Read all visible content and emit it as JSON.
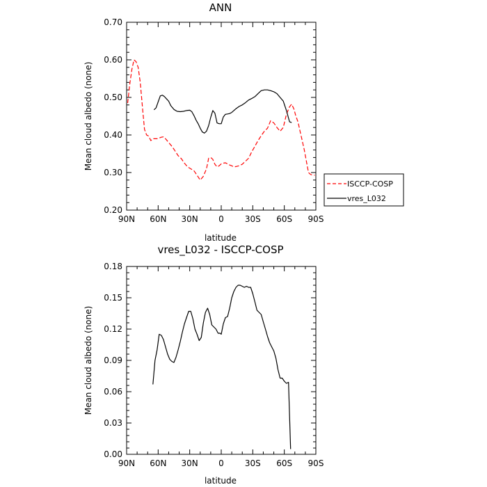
{
  "chart_data": [
    {
      "type": "line",
      "title": "ANN",
      "xlabel": "latitude",
      "ylabel": "Mean cloud albedo (none)",
      "x_tick_labels": [
        "90N",
        "60N",
        "30N",
        "0",
        "30S",
        "60S",
        "90S"
      ],
      "x_ticks": [
        90,
        60,
        30,
        0,
        -30,
        -60,
        -90
      ],
      "y_tick_labels": [
        "0.20",
        "0.30",
        "0.40",
        "0.50",
        "0.60",
        "0.70"
      ],
      "y_ticks": [
        0.2,
        0.3,
        0.4,
        0.5,
        0.6,
        0.7
      ],
      "xlim": [
        90,
        -90
      ],
      "ylim": [
        0.2,
        0.7
      ],
      "grid": false,
      "legend": "right",
      "series": [
        {
          "name": "ISCCP-COSP",
          "color": "#ff0000",
          "dash": "dashed",
          "x": [
            89,
            87,
            85,
            83,
            81,
            79,
            77,
            75,
            73,
            71,
            69,
            67,
            65,
            63,
            61,
            59,
            57,
            55,
            53,
            50,
            47,
            44,
            41,
            38,
            35,
            32,
            29,
            26,
            23,
            20,
            17,
            14,
            12,
            10,
            8,
            6,
            4,
            2,
            0,
            -2,
            -4,
            -6,
            -8,
            -10,
            -12,
            -14,
            -17,
            -20,
            -23,
            -26,
            -29,
            -32,
            -35,
            -38,
            -41,
            -44,
            -47,
            -50,
            -53,
            -56,
            -59,
            -62,
            -65,
            -67,
            -69,
            -71,
            -73,
            -75,
            -77,
            -79,
            -81,
            -83,
            -85,
            -87,
            -89
          ],
          "y": [
            0.485,
            0.535,
            0.575,
            0.6,
            0.595,
            0.58,
            0.54,
            0.475,
            0.415,
            0.4,
            0.397,
            0.385,
            0.39,
            0.39,
            0.39,
            0.392,
            0.394,
            0.395,
            0.39,
            0.38,
            0.37,
            0.358,
            0.345,
            0.337,
            0.325,
            0.315,
            0.31,
            0.305,
            0.293,
            0.28,
            0.29,
            0.31,
            0.338,
            0.34,
            0.335,
            0.322,
            0.315,
            0.318,
            0.323,
            0.325,
            0.326,
            0.323,
            0.32,
            0.318,
            0.315,
            0.316,
            0.318,
            0.322,
            0.33,
            0.338,
            0.355,
            0.37,
            0.385,
            0.398,
            0.41,
            0.418,
            0.438,
            0.432,
            0.42,
            0.41,
            0.42,
            0.455,
            0.475,
            0.482,
            0.47,
            0.45,
            0.435,
            0.41,
            0.385,
            0.36,
            0.33,
            0.3,
            0.295,
            0.293,
            0.293
          ]
        },
        {
          "name": "vres_L032",
          "color": "#000000",
          "dash": "solid",
          "x": [
            64,
            62,
            60,
            58,
            56,
            54,
            52,
            50,
            48,
            45,
            42,
            39,
            36,
            33,
            30,
            28,
            26,
            24,
            22,
            20,
            18,
            16,
            14,
            12,
            10,
            8,
            6,
            4,
            2,
            0,
            -2,
            -4,
            -6,
            -8,
            -10,
            -12,
            -14,
            -17,
            -20,
            -23,
            -26,
            -29,
            -32,
            -35,
            -38,
            -41,
            -44,
            -47,
            -50,
            -53,
            -56,
            -59,
            -62,
            -64,
            -65,
            -67
          ],
          "y": [
            0.467,
            0.472,
            0.488,
            0.504,
            0.506,
            0.502,
            0.496,
            0.49,
            0.478,
            0.468,
            0.463,
            0.462,
            0.463,
            0.465,
            0.466,
            0.462,
            0.452,
            0.44,
            0.43,
            0.418,
            0.408,
            0.405,
            0.41,
            0.425,
            0.447,
            0.465,
            0.458,
            0.432,
            0.43,
            0.43,
            0.448,
            0.455,
            0.456,
            0.457,
            0.46,
            0.465,
            0.47,
            0.476,
            0.48,
            0.486,
            0.493,
            0.497,
            0.502,
            0.51,
            0.518,
            0.52,
            0.52,
            0.518,
            0.515,
            0.51,
            0.5,
            0.49,
            0.465,
            0.445,
            0.435,
            0.433
          ]
        }
      ]
    },
    {
      "type": "line",
      "title": "vres_L032 - ISCCP-COSP",
      "xlabel": "latitude",
      "ylabel": "Mean cloud albedo (none)",
      "x_tick_labels": [
        "90N",
        "60N",
        "30N",
        "0",
        "30S",
        "60S",
        "90S"
      ],
      "x_ticks": [
        90,
        60,
        30,
        0,
        -30,
        -60,
        -90
      ],
      "y_tick_labels": [
        "0.00",
        "0.03",
        "0.06",
        "0.09",
        "0.12",
        "0.15",
        "0.18"
      ],
      "y_ticks": [
        0,
        0.03,
        0.06,
        0.09,
        0.12,
        0.15,
        0.18
      ],
      "xlim": [
        90,
        -90
      ],
      "ylim": [
        0,
        0.18
      ],
      "grid": false,
      "series": [
        {
          "color": "#000000",
          "dash": "solid",
          "x": [
            65,
            63,
            61,
            59,
            57,
            55,
            53,
            51,
            49,
            47,
            45,
            43,
            41,
            39,
            37,
            35,
            33,
            31,
            29,
            27,
            25,
            23,
            21,
            19,
            17,
            15,
            13,
            11,
            9,
            7,
            5,
            3,
            1,
            0,
            -2,
            -4,
            -6,
            -8,
            -10,
            -12,
            -14,
            -16,
            -18,
            -20,
            -22,
            -24,
            -26,
            -28,
            -30,
            -32,
            -34,
            -36,
            -38,
            -40,
            -42,
            -44,
            -46,
            -48,
            -50,
            -52,
            -54,
            -56,
            -58,
            -60,
            -62,
            -64,
            -66
          ],
          "y": [
            0.067,
            0.09,
            0.1,
            0.115,
            0.114,
            0.11,
            0.103,
            0.096,
            0.091,
            0.089,
            0.088,
            0.093,
            0.1,
            0.108,
            0.117,
            0.125,
            0.131,
            0.137,
            0.137,
            0.13,
            0.12,
            0.115,
            0.109,
            0.112,
            0.126,
            0.136,
            0.14,
            0.134,
            0.124,
            0.122,
            0.12,
            0.116,
            0.116,
            0.115,
            0.125,
            0.131,
            0.132,
            0.14,
            0.15,
            0.156,
            0.16,
            0.162,
            0.162,
            0.161,
            0.16,
            0.161,
            0.16,
            0.16,
            0.154,
            0.146,
            0.138,
            0.136,
            0.134,
            0.127,
            0.12,
            0.113,
            0.107,
            0.103,
            0.099,
            0.092,
            0.081,
            0.073,
            0.073,
            0.07,
            0.068,
            0.069,
            0.005
          ]
        }
      ]
    }
  ]
}
